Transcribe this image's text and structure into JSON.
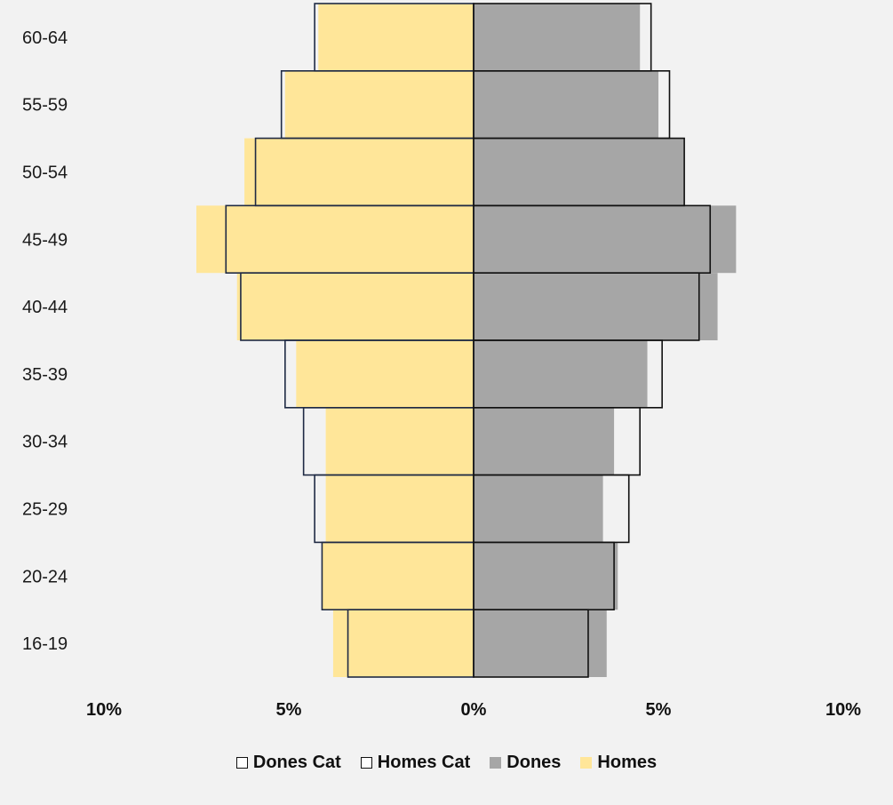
{
  "chart_data": {
    "type": "bar",
    "orientation": "horizontal-population-pyramid",
    "categories": [
      "16-19",
      "20-24",
      "25-29",
      "30-34",
      "35-39",
      "40-44",
      "45-49",
      "50-54",
      "55-59",
      "60-64"
    ],
    "series": [
      {
        "name": "Homes",
        "side": "left",
        "style": "filled",
        "color": "#ffe699",
        "values": [
          3.8,
          4.1,
          4.0,
          4.0,
          4.8,
          6.4,
          7.5,
          6.2,
          5.1,
          4.2
        ]
      },
      {
        "name": "Dones",
        "side": "right",
        "style": "filled",
        "color": "#a6a6a6",
        "values": [
          3.6,
          3.9,
          3.5,
          3.8,
          4.7,
          6.6,
          7.1,
          5.7,
          5.0,
          4.5
        ]
      },
      {
        "name": "Homes Cat",
        "side": "left",
        "style": "outline",
        "color": "#1f2a44",
        "values": [
          3.4,
          4.1,
          4.3,
          4.6,
          5.1,
          6.3,
          6.7,
          5.9,
          5.2,
          4.3
        ]
      },
      {
        "name": "Dones Cat",
        "side": "right",
        "style": "outline",
        "color": "#111111",
        "values": [
          3.1,
          3.8,
          4.2,
          4.5,
          5.1,
          6.1,
          6.4,
          5.7,
          5.3,
          4.8
        ]
      }
    ],
    "x_ticks": [
      "10%",
      "5%",
      "0%",
      "5%",
      "10%"
    ],
    "xlim": [
      -10,
      10
    ],
    "x_unit": "%",
    "grid": false,
    "legend_position": "bottom",
    "legend_order": [
      "Dones Cat",
      "Homes Cat",
      "Dones",
      "Homes"
    ]
  }
}
